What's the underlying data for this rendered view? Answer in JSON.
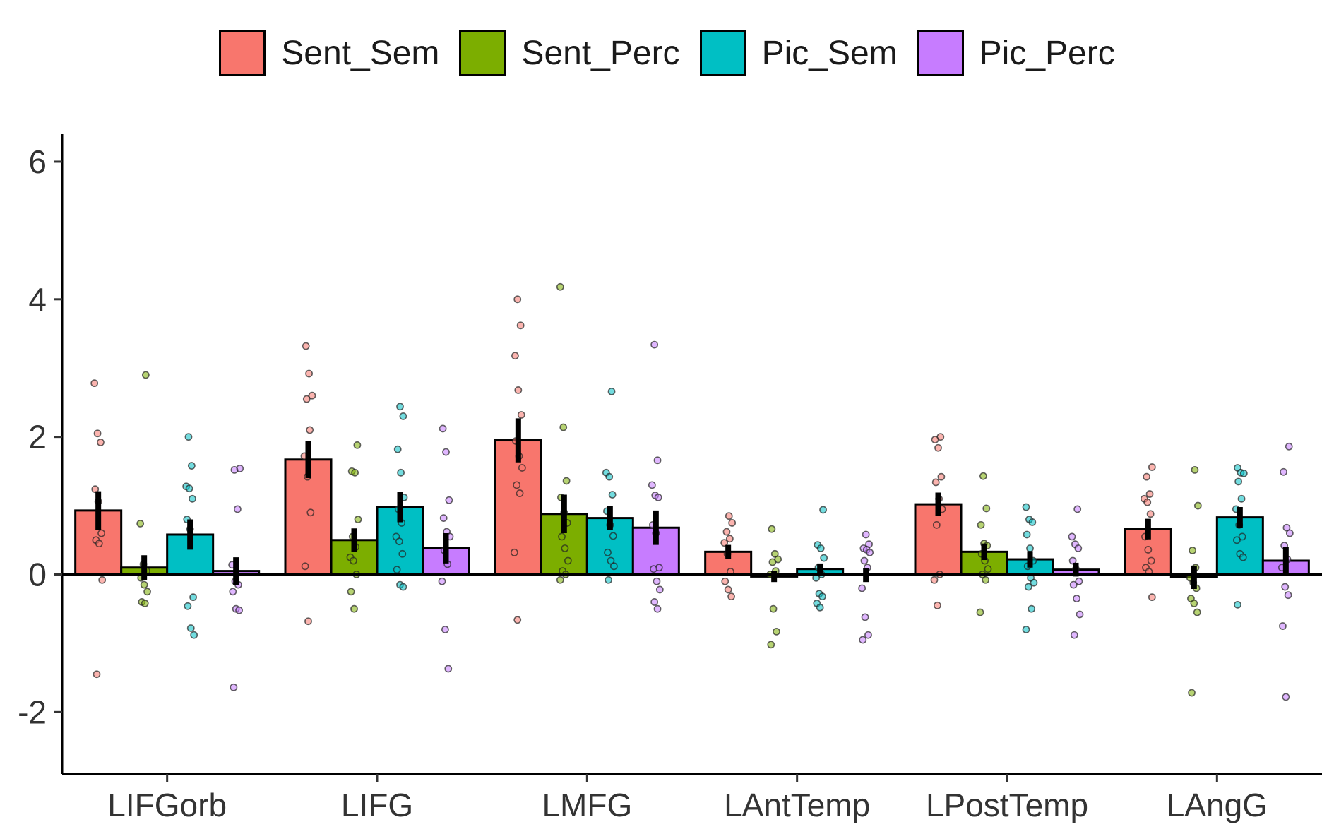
{
  "chart_data": {
    "type": "bar",
    "title": "",
    "xlabel": "",
    "ylabel": "",
    "ylim": [
      -2.9,
      6.4
    ],
    "yticks": [
      -2,
      0,
      2,
      4,
      6
    ],
    "grid": false,
    "legend_position": "top",
    "categories": [
      "LIFGorb",
      "LIFG",
      "LMFG",
      "LAntTemp",
      "LPostTemp",
      "LAngG"
    ],
    "series": [
      {
        "name": "Sent_Sem",
        "color": "#F8766D",
        "values": [
          0.93,
          1.67,
          1.95,
          0.33,
          1.02,
          0.66
        ],
        "errors": [
          0.28,
          0.27,
          0.32,
          0.1,
          0.17,
          0.15
        ],
        "points": [
          [
            2.78,
            2.05,
            1.92,
            1.24,
            1.06,
            0.6,
            0.5,
            0.45,
            -0.08,
            -1.45
          ],
          [
            3.32,
            2.92,
            2.6,
            2.55,
            2.1,
            1.72,
            1.42,
            0.9,
            0.12,
            -0.68
          ],
          [
            4.0,
            3.62,
            3.18,
            2.68,
            2.32,
            1.94,
            1.72,
            1.55,
            1.3,
            1.18,
            0.32,
            -0.66
          ],
          [
            0.85,
            0.75,
            0.62,
            0.52,
            0.46,
            0.3,
            0.04,
            -0.1,
            -0.22,
            -0.32
          ],
          [
            2.0,
            1.96,
            1.84,
            1.42,
            1.34,
            1.1,
            0.95,
            0.72,
            0.0,
            -0.08,
            -0.45
          ],
          [
            1.56,
            1.42,
            1.17,
            1.1,
            1.05,
            0.88,
            0.55,
            0.36,
            0.2,
            0.1,
            0.04,
            -0.33
          ]
        ]
      },
      {
        "name": "Sent_Perc",
        "color": "#7CAE00",
        "values": [
          0.1,
          0.5,
          0.88,
          -0.03,
          0.33,
          -0.04
        ],
        "errors": [
          0.18,
          0.17,
          0.28,
          0.08,
          0.12,
          0.17
        ],
        "points": [
          [
            2.9,
            0.74,
            0.15,
            0.05,
            -0.05,
            -0.15,
            -0.25,
            -0.4,
            -0.42
          ],
          [
            1.88,
            1.5,
            1.48,
            0.8,
            0.55,
            0.4,
            0.25,
            0.2,
            0.0,
            -0.25,
            -0.5
          ],
          [
            4.18,
            2.14,
            1.36,
            1.12,
            0.9,
            0.75,
            0.55,
            0.38,
            0.2,
            0.05,
            0.0,
            -0.08
          ],
          [
            0.66,
            0.3,
            0.22,
            0.18,
            0.05,
            0.0,
            -0.5,
            -0.83,
            -1.02
          ],
          [
            1.43,
            0.96,
            0.72,
            0.45,
            0.42,
            0.3,
            0.2,
            0.08,
            0.0,
            -0.08,
            -0.55
          ],
          [
            1.52,
            1.0,
            0.35,
            0.1,
            -0.05,
            -0.12,
            -0.2,
            -0.35,
            -0.42,
            -0.55,
            -1.72
          ]
        ]
      },
      {
        "name": "Pic_Sem",
        "color": "#00BFC4",
        "values": [
          0.58,
          0.98,
          0.82,
          0.08,
          0.22,
          0.83
        ],
        "errors": [
          0.22,
          0.22,
          0.17,
          0.08,
          0.12,
          0.15
        ],
        "points": [
          [
            2.0,
            1.58,
            1.28,
            1.25,
            1.1,
            0.8,
            0.66,
            -0.33,
            -0.46,
            -0.78,
            -0.88
          ],
          [
            2.44,
            2.3,
            1.82,
            1.48,
            1.12,
            0.95,
            0.75,
            0.55,
            0.48,
            0.3,
            0.07,
            -0.15,
            -0.18
          ],
          [
            2.66,
            1.48,
            1.42,
            1.16,
            0.92,
            0.72,
            0.56,
            0.32,
            0.2,
            0.12,
            -0.08
          ],
          [
            0.94,
            0.43,
            0.38,
            0.24,
            0.1,
            0.0,
            -0.05,
            -0.28,
            -0.32,
            -0.42,
            -0.48
          ],
          [
            0.98,
            0.8,
            0.76,
            0.58,
            0.38,
            0.2,
            0.12,
            -0.05,
            -0.12,
            -0.18,
            -0.5,
            -0.8
          ],
          [
            1.55,
            1.48,
            1.47,
            1.35,
            1.1,
            0.95,
            0.72,
            0.55,
            0.5,
            0.3,
            0.25,
            -0.44
          ]
        ]
      },
      {
        "name": "Pic_Perc",
        "color": "#C77CFF",
        "values": [
          0.05,
          0.38,
          0.68,
          -0.01,
          0.07,
          0.2
        ],
        "errors": [
          0.2,
          0.22,
          0.25,
          0.1,
          0.1,
          0.2
        ],
        "points": [
          [
            1.54,
            1.52,
            0.95,
            0.14,
            -0.1,
            -0.15,
            -0.25,
            -0.5,
            -0.52,
            -1.64
          ],
          [
            2.12,
            1.78,
            1.08,
            0.82,
            0.62,
            0.55,
            0.35,
            0.15,
            -0.1,
            -0.8,
            -1.37
          ],
          [
            3.34,
            1.66,
            1.3,
            1.15,
            1.12,
            0.72,
            0.6,
            0.1,
            0.08,
            -0.1,
            -0.22,
            -0.4,
            -0.5
          ],
          [
            0.58,
            0.44,
            0.38,
            0.36,
            0.32,
            0.2,
            0.1,
            -0.2,
            -0.62,
            -0.88,
            -0.95
          ],
          [
            0.95,
            0.55,
            0.44,
            0.38,
            0.2,
            0.08,
            -0.1,
            -0.15,
            -0.35,
            -0.58,
            -0.88
          ],
          [
            1.86,
            1.49,
            0.68,
            0.6,
            0.42,
            0.22,
            0.1,
            -0.18,
            -0.3,
            -0.75,
            -1.78
          ]
        ]
      }
    ]
  }
}
